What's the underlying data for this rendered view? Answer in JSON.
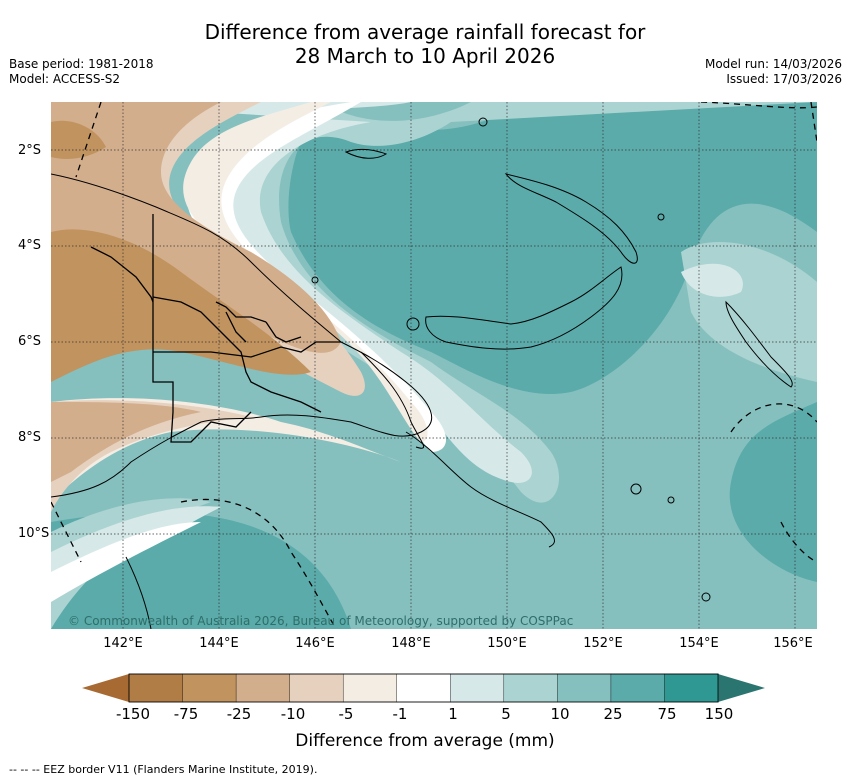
{
  "title_line1": "Difference from average rainfall forecast for",
  "title_line2": "28 March to 10 April 2026",
  "left_meta": {
    "base_period": "Base period: 1981-2018",
    "model": "Model: ACCESS-S2"
  },
  "right_meta": {
    "model_run": "Model run: 14/03/2026",
    "issued": "Issued: 17/03/2026"
  },
  "lat_labels": [
    "2°S",
    "4°S",
    "6°S",
    "8°S",
    "10°S"
  ],
  "lon_labels": [
    "142°E",
    "144°E",
    "146°E",
    "148°E",
    "150°E",
    "152°E",
    "154°E",
    "156°E"
  ],
  "copyright": "© Commonwealth of Australia 2026, Bureau of Meteorology, supported by COSPPac",
  "colorbar": {
    "labels": [
      "-150",
      "-75",
      "-25",
      "-10",
      "-5",
      "-1",
      "1",
      "5",
      "10",
      "25",
      "75",
      "150"
    ],
    "colors": [
      "#a86a33",
      "#b07d46",
      "#c1935f",
      "#d3ae8c",
      "#e6d1bf",
      "#f4ede4",
      "#ffffff",
      "#d6e9e8",
      "#abd3d1",
      "#85c0bf",
      "#5aabaa",
      "#2f9893",
      "#2a7570"
    ],
    "title": "Difference from average (mm)"
  },
  "footer": "--  --  -- EEZ border V11 (Flanders Marine Institute, 2019).",
  "map_colors": {
    "land_line": "#000000",
    "grid": "#333333",
    "eez": "#000000"
  }
}
